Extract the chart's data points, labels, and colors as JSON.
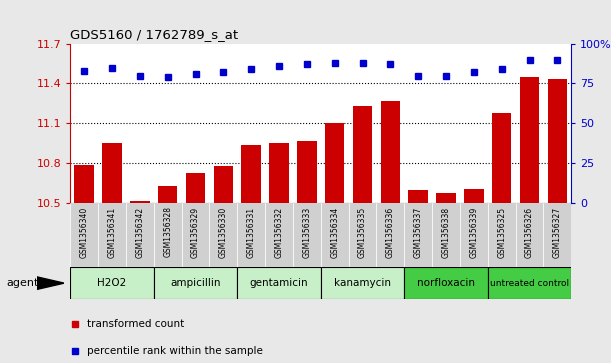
{
  "title": "GDS5160 / 1762789_s_at",
  "samples": [
    "GSM1356340",
    "GSM1356341",
    "GSM1356342",
    "GSM1356328",
    "GSM1356329",
    "GSM1356330",
    "GSM1356331",
    "GSM1356332",
    "GSM1356333",
    "GSM1356334",
    "GSM1356335",
    "GSM1356336",
    "GSM1356337",
    "GSM1356338",
    "GSM1356339",
    "GSM1356325",
    "GSM1356326",
    "GSM1356327"
  ],
  "bar_values": [
    10.79,
    10.95,
    10.52,
    10.63,
    10.73,
    10.78,
    10.94,
    10.95,
    10.97,
    11.1,
    11.23,
    11.27,
    10.6,
    10.58,
    10.61,
    11.18,
    11.45,
    11.43
  ],
  "percentile_values": [
    83,
    85,
    80,
    79,
    81,
    82,
    84,
    86,
    87,
    88,
    88,
    87,
    80,
    80,
    82,
    84,
    90,
    90
  ],
  "groups": [
    {
      "label": "H2O2",
      "start": 0,
      "end": 3,
      "light": true
    },
    {
      "label": "ampicillin",
      "start": 3,
      "end": 6,
      "light": true
    },
    {
      "label": "gentamicin",
      "start": 6,
      "end": 9,
      "light": true
    },
    {
      "label": "kanamycin",
      "start": 9,
      "end": 12,
      "light": true
    },
    {
      "label": "norfloxacin",
      "start": 12,
      "end": 15,
      "light": false
    },
    {
      "label": "untreated control",
      "start": 15,
      "end": 18,
      "light": false
    }
  ],
  "ylim_left": [
    10.5,
    11.7
  ],
  "ylim_right": [
    0,
    100
  ],
  "yticks_left": [
    10.5,
    10.8,
    11.1,
    11.4,
    11.7
  ],
  "ytick_labels_left": [
    "10.5",
    "10.8",
    "11.1",
    "11.4",
    "11.7"
  ],
  "yticks_right": [
    0,
    25,
    50,
    75,
    100
  ],
  "bar_color": "#cc0000",
  "dot_color": "#0000cc",
  "background_color": "#e8e8e8",
  "plot_bg_color": "#ffffff",
  "grid_color": "#000000",
  "group_color_light": "#c8f0c8",
  "group_color_dark": "#44cc44",
  "sample_box_color": "#d0d0d0",
  "legend_bar_label": "transformed count",
  "legend_dot_label": "percentile rank within the sample"
}
